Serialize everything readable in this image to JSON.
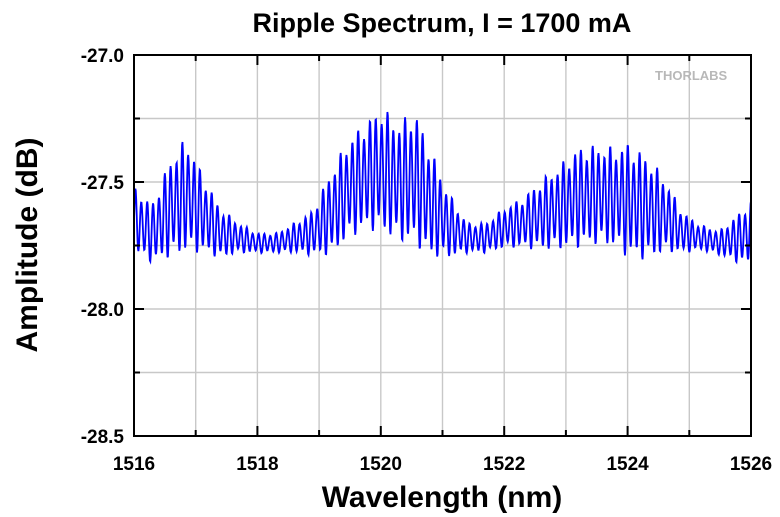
{
  "chart_data": {
    "type": "line",
    "title": "Ripple Spectrum, I = 1700 mA",
    "xlabel": "Wavelength (nm)",
    "ylabel": "Amplitude (dB)",
    "xlim": [
      1516,
      1526
    ],
    "ylim": [
      -28.5,
      -27.0
    ],
    "xticks": [
      1516,
      1518,
      1520,
      1522,
      1524,
      1526
    ],
    "xtick_labels": [
      "1516",
      "1518",
      "1520",
      "1522",
      "1524",
      "1526"
    ],
    "yticks": [
      -28.5,
      -28.0,
      -27.5,
      -27.0
    ],
    "ytick_labels": [
      "-28.5",
      "-28.0",
      "-27.5",
      "-27.0"
    ],
    "grid": true,
    "watermark": "THORLABS",
    "series_color": "#0000ff",
    "series": [
      {
        "x": [
          1516.0,
          1516.3,
          1516.6,
          1516.85,
          1517.1,
          1517.4,
          1517.7,
          1518.0,
          1518.3,
          1518.6,
          1518.9,
          1519.2,
          1519.5,
          1519.8,
          1520.0,
          1520.3,
          1520.55,
          1520.8,
          1521.1,
          1521.4,
          1521.7,
          1522.0,
          1522.3,
          1522.6,
          1522.9,
          1523.2,
          1523.5,
          1523.8,
          1524.0,
          1524.3,
          1524.6,
          1524.9,
          1525.2,
          1525.5,
          1525.8,
          1526.0
        ],
        "center": [
          -27.65,
          -27.7,
          -27.6,
          -27.55,
          -27.62,
          -27.7,
          -27.72,
          -27.74,
          -27.74,
          -27.72,
          -27.7,
          -27.62,
          -27.52,
          -27.47,
          -27.45,
          -27.5,
          -27.48,
          -27.58,
          -27.67,
          -27.72,
          -27.72,
          -27.68,
          -27.66,
          -27.63,
          -27.6,
          -27.56,
          -27.55,
          -27.56,
          -27.57,
          -27.6,
          -27.63,
          -27.7,
          -27.72,
          -27.74,
          -27.72,
          -27.7
        ],
        "ripple_amplitude": [
          0.13,
          0.12,
          0.2,
          0.23,
          0.16,
          0.1,
          0.06,
          0.04,
          0.04,
          0.06,
          0.09,
          0.17,
          0.2,
          0.22,
          0.25,
          0.24,
          0.27,
          0.22,
          0.13,
          0.06,
          0.06,
          0.08,
          0.1,
          0.14,
          0.17,
          0.2,
          0.2,
          0.2,
          0.23,
          0.21,
          0.15,
          0.08,
          0.05,
          0.05,
          0.1,
          0.13
        ],
        "ripple_period_nm": 0.095
      }
    ]
  }
}
